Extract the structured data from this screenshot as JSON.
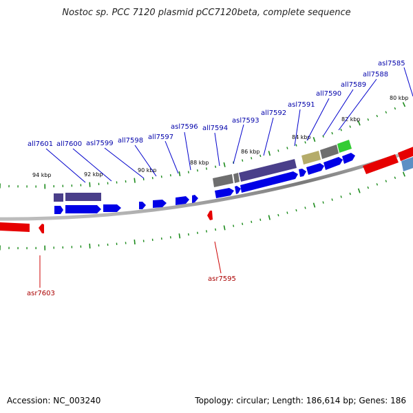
{
  "title": "Nostoc sp. PCC 7120 plasmid pCC7120beta, complete sequence",
  "footer": {
    "accession": "Accession: NC_003240",
    "summary": "Topology: circular; Length: 186,614 bp; Genes: 186"
  },
  "colors": {
    "backbone": "#8a8a8a",
    "forward_gene": "#0000e6",
    "reverse_gene": "#e60000",
    "forward_label": "#0000aa",
    "reverse_label": "#aa0000",
    "tick": "#1a8a1a",
    "cog_purple": "#4a3f8a",
    "cog_gray": "#6e6e6e",
    "cog_olive": "#b5ac6a",
    "cog_green": "#33cc33",
    "cog_lightblue": "#5c8fc4"
  },
  "kbp_labels": [
    {
      "id": "94",
      "text": "94 kbp"
    },
    {
      "id": "92",
      "text": "92 kbp"
    },
    {
      "id": "90",
      "text": "90 kbp"
    },
    {
      "id": "88",
      "text": "88 kbp"
    },
    {
      "id": "86",
      "text": "86 kbp"
    },
    {
      "id": "84",
      "text": "84 kbp"
    },
    {
      "id": "82",
      "text": "82 kbp"
    },
    {
      "id": "80",
      "text": "80 kbp"
    }
  ],
  "genes_forward": [
    {
      "id": "all7601",
      "name": "all7601"
    },
    {
      "id": "all7600",
      "name": "all7600"
    },
    {
      "id": "asl7599",
      "name": "asl7599"
    },
    {
      "id": "all7598",
      "name": "all7598"
    },
    {
      "id": "all7597",
      "name": "all7597"
    },
    {
      "id": "asl7596",
      "name": "asl7596"
    },
    {
      "id": "all7594",
      "name": "all7594"
    },
    {
      "id": "asl7593",
      "name": "asl7593"
    },
    {
      "id": "all7592",
      "name": "all7592"
    },
    {
      "id": "asl7591",
      "name": "asl7591"
    },
    {
      "id": "all7590",
      "name": "all7590"
    },
    {
      "id": "all7589",
      "name": "all7589"
    },
    {
      "id": "all7588",
      "name": "all7588"
    },
    {
      "id": "asl7585",
      "name": "asl7585"
    }
  ],
  "genes_reverse": [
    {
      "id": "asr7603",
      "name": "asr7603"
    },
    {
      "id": "asr7595",
      "name": "asr7595"
    }
  ]
}
